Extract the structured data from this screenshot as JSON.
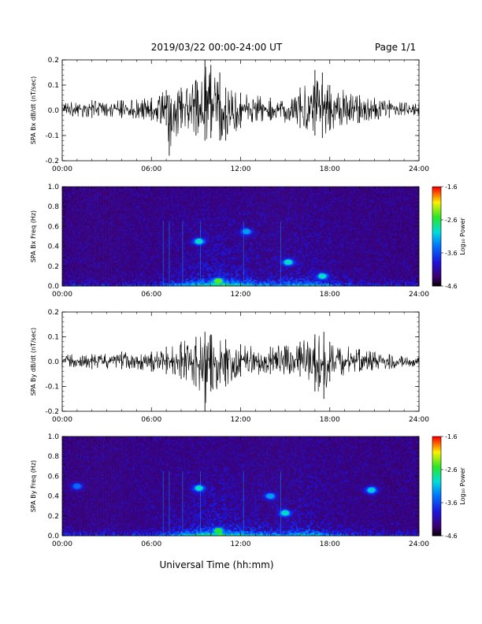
{
  "header": {
    "title": "2019/03/22  00:00-24:00 UT",
    "page": "Page 1/1"
  },
  "footer": {
    "xlabel": "Universal Time (hh:mm)"
  },
  "chart_data": [
    {
      "type": "line",
      "ylabel": "SPA Bx dB/dt (nT/sec)",
      "x_ticks": [
        "00:00",
        "06:00",
        "12:00",
        "18:00",
        "24:00"
      ],
      "y_ticks": [
        "0.2",
        "0.1",
        "0.0",
        "-0.1",
        "-0.2"
      ],
      "xlim": [
        0,
        24
      ],
      "ylim": [
        -0.2,
        0.2
      ],
      "series": [
        {
          "x": [
            0,
            2,
            4,
            6,
            7,
            7.2,
            8,
            9,
            9.6,
            10,
            10.6,
            11,
            12,
            14,
            16,
            17,
            17.5,
            18,
            20,
            22,
            24
          ],
          "max": [
            0.03,
            0.04,
            0.04,
            0.05,
            0.08,
            0.06,
            0.09,
            0.12,
            0.2,
            0.18,
            0.15,
            0.09,
            0.07,
            0.05,
            0.09,
            0.16,
            0.15,
            0.1,
            0.06,
            0.04,
            0.03
          ],
          "min": [
            -0.02,
            -0.03,
            -0.03,
            -0.04,
            -0.06,
            -0.18,
            -0.07,
            -0.1,
            -0.12,
            -0.11,
            -0.12,
            -0.12,
            -0.07,
            -0.04,
            -0.07,
            -0.1,
            -0.11,
            -0.08,
            -0.05,
            -0.03,
            -0.02
          ]
        }
      ]
    },
    {
      "type": "heatmap",
      "ylabel": "SPA Bx Freq (Hz)",
      "colorbar_label": "Log₁₀ Power",
      "colorbar_ticks": [
        "-1.6",
        "-2.6",
        "-3.6",
        "-4.6"
      ],
      "clim": [
        -4.6,
        -1.6
      ],
      "x_ticks": [
        "00:00",
        "06:00",
        "12:00",
        "18:00",
        "24:00"
      ],
      "y_ticks": [
        "1.0",
        "0.8",
        "0.6",
        "0.4",
        "0.2",
        "0.0"
      ],
      "xlim": [
        0,
        24
      ],
      "ylim": [
        0,
        1.0
      ],
      "features": [
        {
          "x": 9.2,
          "y": 0.45,
          "power": -2.9
        },
        {
          "x": 12.4,
          "y": 0.55,
          "power": -3.2
        },
        {
          "x": 15.2,
          "y": 0.24,
          "power": -2.9
        },
        {
          "x": 10.5,
          "y": 0.05,
          "power": -2.4
        },
        {
          "x": 17.5,
          "y": 0.1,
          "power": -2.9
        }
      ]
    },
    {
      "type": "line",
      "ylabel": "SPA By dB/dt (nT/sec)",
      "x_ticks": [
        "00:00",
        "06:00",
        "12:00",
        "18:00",
        "24:00"
      ],
      "y_ticks": [
        "0.2",
        "0.1",
        "0.0",
        "-0.1",
        "-0.2"
      ],
      "xlim": [
        0,
        24
      ],
      "ylim": [
        -0.2,
        0.2
      ],
      "series": [
        {
          "x": [
            0,
            2,
            4,
            6,
            7,
            8,
            9,
            9.6,
            10,
            11,
            12,
            14,
            16,
            17,
            17.6,
            18,
            20,
            22,
            24
          ],
          "max": [
            0.03,
            0.03,
            0.04,
            0.04,
            0.06,
            0.08,
            0.1,
            0.12,
            0.11,
            0.09,
            0.07,
            0.06,
            0.08,
            0.11,
            0.12,
            0.08,
            0.05,
            0.03,
            0.02
          ],
          "min": [
            -0.02,
            -0.03,
            -0.03,
            -0.04,
            -0.05,
            -0.07,
            -0.1,
            -0.2,
            -0.12,
            -0.1,
            -0.06,
            -0.05,
            -0.06,
            -0.12,
            -0.15,
            -0.08,
            -0.04,
            -0.03,
            -0.02
          ]
        }
      ]
    },
    {
      "type": "heatmap",
      "ylabel": "SPA By Freq (Hz)",
      "colorbar_label": "Log₁₀ Power",
      "colorbar_ticks": [
        "-1.6",
        "-2.6",
        "-3.6",
        "-4.6"
      ],
      "clim": [
        -4.6,
        -1.6
      ],
      "x_ticks": [
        "00:00",
        "06:00",
        "12:00",
        "18:00",
        "24:00"
      ],
      "y_ticks": [
        "1.0",
        "0.8",
        "0.6",
        "0.4",
        "0.2",
        "0.0"
      ],
      "xlim": [
        0,
        24
      ],
      "ylim": [
        0,
        1.0
      ],
      "features": [
        {
          "x": 9.2,
          "y": 0.48,
          "power": -2.9
        },
        {
          "x": 15.0,
          "y": 0.23,
          "power": -2.9
        },
        {
          "x": 20.8,
          "y": 0.46,
          "power": -3.0
        },
        {
          "x": 10.5,
          "y": 0.05,
          "power": -2.5
        },
        {
          "x": 14.0,
          "y": 0.4,
          "power": -3.2
        },
        {
          "x": 1.0,
          "y": 0.5,
          "power": -3.4
        }
      ]
    }
  ]
}
